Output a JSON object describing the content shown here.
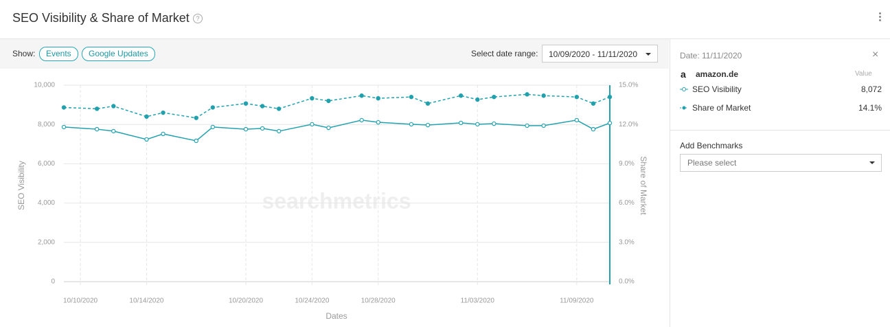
{
  "header": {
    "title": "SEO Visibility & Share of Market"
  },
  "toolbar": {
    "show_label": "Show:",
    "buttons": [
      "Events",
      "Google Updates"
    ],
    "range_label": "Select date range:",
    "range_value": "10/09/2020 - 11/11/2020"
  },
  "panel": {
    "date": "Date: 11/11/2020",
    "domain": "amazon.de",
    "value_header": "Value",
    "values": [
      "8,072",
      "14.1%"
    ],
    "benchmarks_title": "Add Benchmarks",
    "benchmarks_placeholder": "Please select"
  },
  "chart_data": {
    "type": "line",
    "watermark": "searchmetrics",
    "xlabel": "Dates",
    "ylabel": "SEO Visibility",
    "y2label": "Share of Market",
    "x": [
      "2020-10-09",
      "2020-10-11",
      "2020-10-12",
      "2020-10-14",
      "2020-10-15",
      "2020-10-17",
      "2020-10-18",
      "2020-10-20",
      "2020-10-21",
      "2020-10-22",
      "2020-10-24",
      "2020-10-25",
      "2020-10-27",
      "2020-10-28",
      "2020-10-30",
      "2020-10-31",
      "2020-11-02",
      "2020-11-03",
      "2020-11-04",
      "2020-11-06",
      "2020-11-07",
      "2020-11-09",
      "2020-11-10",
      "2020-11-11"
    ],
    "xlim": [
      "2020-10-09",
      "2020-11-11"
    ],
    "xticks": [
      {
        "value": "2020-10-10",
        "label": "10/10/2020"
      },
      {
        "value": "2020-10-14",
        "label": "10/14/2020"
      },
      {
        "value": "2020-10-20",
        "label": "10/20/2020"
      },
      {
        "value": "2020-10-24",
        "label": "10/24/2020"
      },
      {
        "value": "2020-10-28",
        "label": "10/28/2020"
      },
      {
        "value": "2020-11-03",
        "label": "11/03/2020"
      },
      {
        "value": "2020-11-09",
        "label": "11/09/2020"
      }
    ],
    "ylim": [
      0,
      10000
    ],
    "yticks": [
      0,
      {
        "value": 2000,
        "label": "2,000"
      },
      {
        "value": 4000,
        "label": "4,000"
      },
      {
        "value": 6000,
        "label": "6,000"
      },
      {
        "value": 8000,
        "label": "8,000"
      },
      {
        "value": 10000,
        "label": "10,000"
      }
    ],
    "y2lim": [
      0,
      15
    ],
    "y2ticks": [
      {
        "value": 0,
        "label": "0.0%"
      },
      {
        "value": 3,
        "label": "3.0%"
      },
      {
        "value": 6,
        "label": "6.0%"
      },
      {
        "value": 9,
        "label": "9.0%"
      },
      {
        "value": 12,
        "label": "12.0%"
      },
      {
        "value": 15,
        "label": "15.0%"
      }
    ],
    "grid": true,
    "series": [
      {
        "name": "SEO Visibility",
        "color": "#22a1ad",
        "line_style": "solid",
        "marker": "open",
        "values": [
          7870,
          7760,
          7660,
          7240,
          7520,
          7170,
          7870,
          7760,
          7800,
          7660,
          8010,
          7830,
          8220,
          8110,
          8010,
          7970,
          8080,
          8010,
          8040,
          7940,
          7940,
          8220,
          7760,
          8072
        ]
      },
      {
        "name": "Share of Market",
        "color": "#22a1ad",
        "line_style": "dashed",
        "marker": "filled",
        "axis": "y2",
        "values": [
          13.3,
          13.2,
          13.4,
          12.6,
          12.9,
          12.5,
          13.3,
          13.6,
          13.4,
          13.2,
          14.0,
          13.8,
          14.2,
          14.0,
          14.1,
          13.6,
          14.2,
          13.9,
          14.1,
          14.3,
          14.2,
          14.1,
          13.6,
          14.1
        ]
      }
    ]
  }
}
